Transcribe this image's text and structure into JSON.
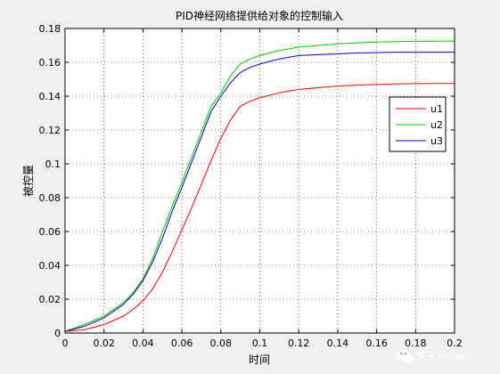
{
  "chart_data": {
    "type": "line",
    "title": "PID神经网络提供给对象的控制输入",
    "xlabel": "时间",
    "ylabel": "被控量",
    "xlim": [
      0,
      0.2
    ],
    "ylim": [
      0,
      0.18
    ],
    "xticks": [
      0,
      0.02,
      0.04,
      0.06,
      0.08,
      0.1,
      0.12,
      0.14,
      0.16,
      0.18,
      0.2
    ],
    "yticks": [
      0,
      0.02,
      0.04,
      0.06,
      0.08,
      0.1,
      0.12,
      0.14,
      0.16,
      0.18
    ],
    "xtick_labels": [
      "0",
      "0.02",
      "0.04",
      "0.06",
      "0.08",
      "0.1",
      "0.12",
      "0.14",
      "0.16",
      "0.18",
      "0.2"
    ],
    "ytick_labels": [
      "0",
      "0.02",
      "0.04",
      "0.06",
      "0.08",
      "0.1",
      "0.12",
      "0.14",
      "0.16",
      "0.18"
    ],
    "grid": true,
    "legend_position": "right",
    "x": [
      0,
      0.01,
      0.02,
      0.03,
      0.035,
      0.04,
      0.045,
      0.05,
      0.055,
      0.06,
      0.065,
      0.07,
      0.075,
      0.08,
      0.085,
      0.09,
      0.095,
      0.1,
      0.11,
      0.12,
      0.13,
      0.14,
      0.15,
      0.16,
      0.17,
      0.18,
      0.19,
      0.2
    ],
    "series": [
      {
        "name": "u1",
        "color": "#ff0000",
        "values": [
          0.001,
          0.002,
          0.005,
          0.01,
          0.014,
          0.019,
          0.026,
          0.036,
          0.048,
          0.061,
          0.074,
          0.088,
          0.102,
          0.115,
          0.126,
          0.134,
          0.137,
          0.139,
          0.142,
          0.144,
          0.145,
          0.146,
          0.1465,
          0.147,
          0.1472,
          0.1474,
          0.1475,
          0.1475
        ]
      },
      {
        "name": "u2",
        "color": "#00cc00",
        "values": [
          0.001,
          0.005,
          0.01,
          0.018,
          0.024,
          0.032,
          0.044,
          0.06,
          0.075,
          0.089,
          0.104,
          0.119,
          0.134,
          0.142,
          0.152,
          0.159,
          0.162,
          0.164,
          0.167,
          0.169,
          0.17,
          0.171,
          0.1715,
          0.172,
          0.1722,
          0.1724,
          0.1725,
          0.1725
        ]
      },
      {
        "name": "u3",
        "color": "#0000cc",
        "values": [
          0.001,
          0.004,
          0.009,
          0.017,
          0.023,
          0.031,
          0.042,
          0.056,
          0.072,
          0.086,
          0.101,
          0.116,
          0.131,
          0.14,
          0.148,
          0.154,
          0.157,
          0.159,
          0.162,
          0.164,
          0.1645,
          0.165,
          0.1655,
          0.1658,
          0.166,
          0.166,
          0.166,
          0.166
        ]
      }
    ]
  },
  "watermark": {
    "text": "天天Matlab",
    "icon": "wechat-logo-icon"
  }
}
